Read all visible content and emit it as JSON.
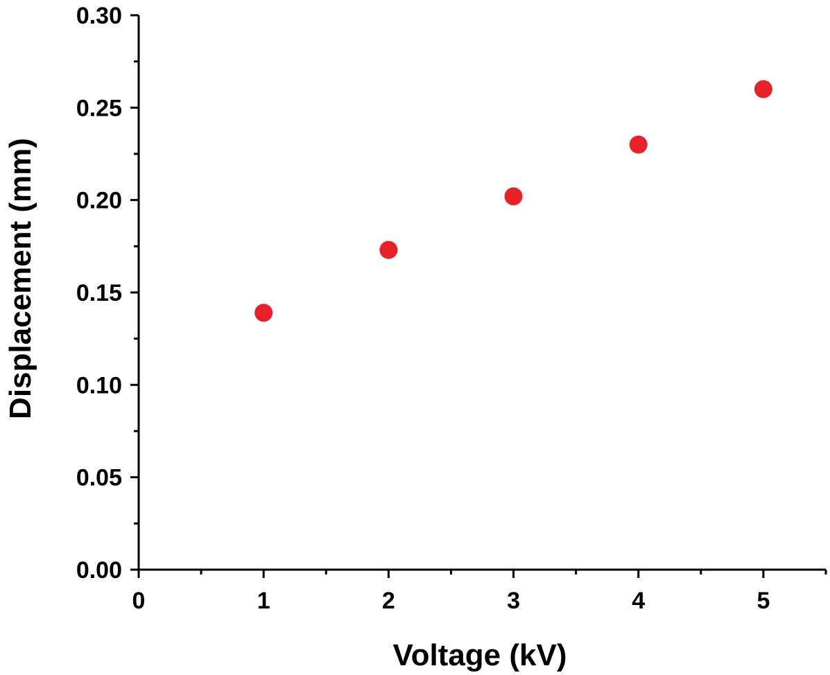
{
  "chart_data": {
    "type": "scatter",
    "xlabel": "Voltage (kV)",
    "ylabel": "Displacement (mm)",
    "xlim": [
      0,
      5.5
    ],
    "ylim": [
      0,
      0.3
    ],
    "x_ticks": [
      "0",
      "1",
      "2",
      "3",
      "4",
      "5"
    ],
    "y_ticks": [
      "0.00",
      "0.05",
      "0.10",
      "0.15",
      "0.20",
      "0.25",
      "0.30"
    ],
    "grid": false,
    "legend": "none",
    "series": [
      {
        "color": "#e8202a",
        "marker": "circle",
        "points": [
          {
            "x": 1,
            "y": 0.139
          },
          {
            "x": 2,
            "y": 0.173
          },
          {
            "x": 3,
            "y": 0.202
          },
          {
            "x": 4,
            "y": 0.23
          },
          {
            "x": 5,
            "y": 0.26
          }
        ]
      }
    ]
  }
}
